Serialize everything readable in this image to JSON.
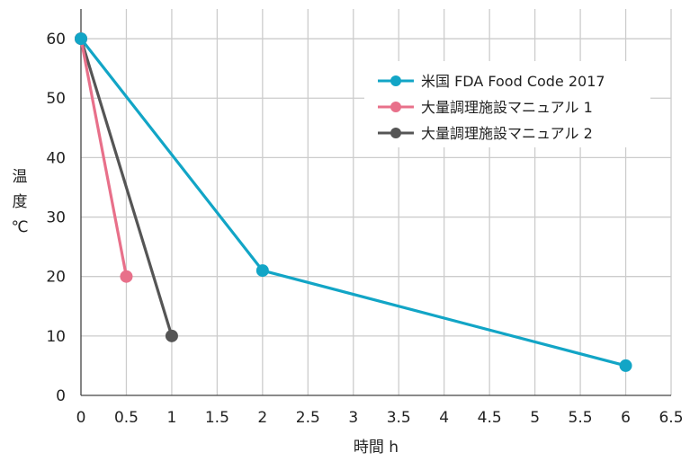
{
  "chart_data": {
    "type": "line",
    "xlabel": "時間 h",
    "ylabel": "温度 ℃",
    "xlim": [
      0,
      6.5
    ],
    "ylim": [
      0,
      65
    ],
    "x_ticks": [
      "0",
      "0.5",
      "1",
      "1.5",
      "2",
      "2.5",
      "3",
      "3.5",
      "4",
      "4.5",
      "5",
      "5.5",
      "6",
      "6.5"
    ],
    "y_ticks": [
      "0",
      "10",
      "20",
      "30",
      "40",
      "50",
      "60"
    ],
    "grid": true,
    "legend_position": "top-right",
    "series": [
      {
        "name": "米国 FDA Food Code 2017",
        "color": "#12a5c6",
        "x": [
          0,
          2,
          6
        ],
        "y": [
          60,
          21,
          5
        ]
      },
      {
        "name": "大量調理施設マニュアル 1",
        "color": "#e8708a",
        "x": [
          0,
          0.5
        ],
        "y": [
          60,
          20
        ]
      },
      {
        "name": "大量調理施設マニュアル 2",
        "color": "#555555",
        "x": [
          0,
          1
        ],
        "y": [
          60,
          10
        ]
      }
    ]
  }
}
